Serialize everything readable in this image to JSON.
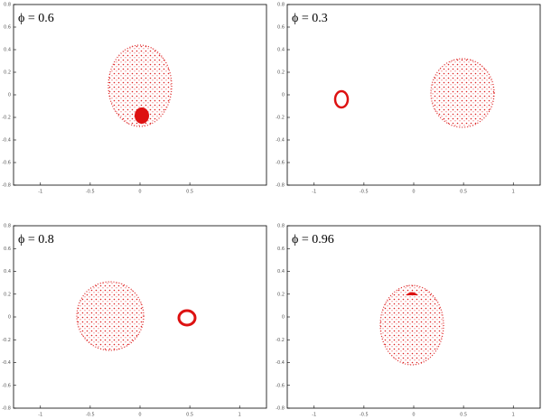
{
  "panels": [
    {
      "label": "ϕ = 0.6",
      "xlim": [
        -1.27,
        1.27
      ],
      "ylim": [
        -0.8,
        0.8
      ],
      "xticks": [
        -1,
        -0.5,
        0,
        0.5
      ],
      "yticks": [
        -0.8,
        -0.6,
        -0.4,
        -0.2,
        0,
        0.2,
        0.4,
        0.6,
        0.8
      ]
    },
    {
      "label": "ϕ = 0.3",
      "xlim": [
        -1.27,
        1.27
      ],
      "ylim": [
        -0.8,
        0.8
      ],
      "xticks": [
        -1,
        -0.5,
        0,
        0.5,
        1
      ],
      "yticks": [
        -0.8,
        -0.6,
        -0.4,
        -0.2,
        0,
        0.2,
        0.4,
        0.6,
        0.8
      ]
    },
    {
      "label": "ϕ = 0.8",
      "xlim": [
        -1.27,
        1.27
      ],
      "ylim": [
        -0.8,
        0.8
      ],
      "xticks": [
        -1,
        -0.5,
        0,
        0.5,
        1
      ],
      "yticks": [
        -0.8,
        -0.6,
        -0.4,
        -0.2,
        0,
        0.2,
        0.4,
        0.6,
        0.8
      ]
    },
    {
      "label": "ϕ = 0.96",
      "xlim": [
        -1.27,
        1.27
      ],
      "ylim": [
        -0.8,
        0.8
      ],
      "xticks": [
        -1,
        -0.5,
        0,
        0.5,
        1
      ],
      "yticks": [
        -0.8,
        -0.6,
        -0.4,
        -0.2,
        0,
        0.2,
        0.4,
        0.6,
        0.8
      ]
    }
  ]
}
